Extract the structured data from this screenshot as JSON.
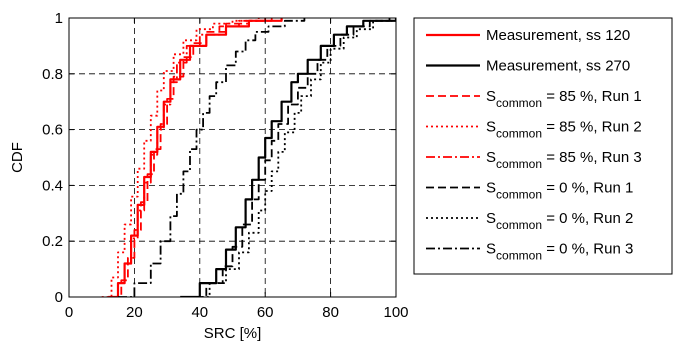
{
  "chart_data": {
    "type": "line",
    "title": "",
    "xlabel": "SRC [%]",
    "ylabel": "CDF",
    "xlim": [
      0,
      100
    ],
    "ylim": [
      0,
      1
    ],
    "xticks": [
      "0",
      "20",
      "40",
      "60",
      "80",
      "100"
    ],
    "yticks": [
      "0",
      "0.2",
      "0.4",
      "0.6",
      "0.8",
      "1"
    ],
    "grid": true,
    "legend_position": "outside-right",
    "series": [
      {
        "name": "Measurement, ss 120",
        "legend": {
          "main": "Measurement, ss 120",
          "sub": "",
          "rest": ""
        },
        "color": "#ff0000",
        "dash": "solid",
        "width": 2.2,
        "x": [
          12,
          15,
          17,
          19,
          21,
          23,
          25,
          27,
          29,
          31,
          34,
          37,
          42,
          48,
          55,
          65
        ],
        "y": [
          0,
          0.05,
          0.12,
          0.22,
          0.33,
          0.43,
          0.52,
          0.61,
          0.7,
          0.78,
          0.85,
          0.9,
          0.94,
          0.97,
          0.99,
          1.0
        ]
      },
      {
        "name": "Measurement, ss 270",
        "legend": {
          "main": "Measurement, ss 270",
          "sub": "",
          "rest": ""
        },
        "color": "#000000",
        "dash": "solid",
        "width": 2.2,
        "x": [
          34,
          40,
          45,
          48,
          51,
          54,
          56,
          58,
          60,
          62,
          65,
          68,
          70,
          73,
          77,
          81,
          85,
          90,
          100
        ],
        "y": [
          0,
          0.05,
          0.1,
          0.17,
          0.25,
          0.35,
          0.42,
          0.5,
          0.57,
          0.63,
          0.7,
          0.77,
          0.8,
          0.85,
          0.9,
          0.94,
          0.97,
          0.99,
          1.0
        ]
      },
      {
        "name": "S_common = 85 %, Run 1",
        "legend": {
          "main": "S",
          "sub": "common",
          "rest": " = 85 %, Run 1"
        },
        "color": "#ff0000",
        "dash": "8,4",
        "width": 1.8,
        "x": [
          13,
          16,
          18,
          20,
          22,
          24,
          26,
          28,
          30,
          32,
          35,
          38,
          42,
          48,
          55,
          62
        ],
        "y": [
          0,
          0.06,
          0.14,
          0.24,
          0.34,
          0.44,
          0.53,
          0.62,
          0.71,
          0.79,
          0.86,
          0.91,
          0.95,
          0.98,
          0.99,
          1.0
        ]
      },
      {
        "name": "S_common = 85 %, Run 2",
        "legend": {
          "main": "S",
          "sub": "common",
          "rest": " = 85 %, Run 2"
        },
        "color": "#ff0000",
        "dash": "2,3",
        "width": 1.8,
        "x": [
          10,
          13,
          15,
          17,
          19,
          21,
          23,
          25,
          27,
          29,
          32,
          35,
          39,
          44,
          50,
          58
        ],
        "y": [
          0,
          0.07,
          0.16,
          0.26,
          0.36,
          0.46,
          0.56,
          0.65,
          0.74,
          0.81,
          0.87,
          0.92,
          0.96,
          0.98,
          0.99,
          1.0
        ]
      },
      {
        "name": "S_common = 85 %, Run 3",
        "legend": {
          "main": "S",
          "sub": "common",
          "rest": " = 85 %, Run 3"
        },
        "color": "#ff0000",
        "dash": "9,3,2,3",
        "width": 1.8,
        "x": [
          13,
          15,
          17,
          19,
          21,
          23,
          25,
          27,
          29,
          31,
          33,
          36,
          40,
          46,
          52,
          60
        ],
        "y": [
          0,
          0.05,
          0.12,
          0.21,
          0.31,
          0.41,
          0.51,
          0.6,
          0.69,
          0.77,
          0.84,
          0.9,
          0.94,
          0.97,
          0.99,
          1.0
        ]
      },
      {
        "name": "S_common = 0 %, Run 1",
        "legend": {
          "main": "S",
          "sub": "common",
          "rest": " = 0 %, Run 1"
        },
        "color": "#000000",
        "dash": "8,4",
        "width": 1.8,
        "x": [
          35,
          42,
          47,
          50,
          53,
          56,
          58,
          60,
          62,
          64,
          67,
          70,
          73,
          76,
          79,
          83,
          87,
          92,
          98
        ],
        "y": [
          0,
          0.05,
          0.11,
          0.18,
          0.26,
          0.35,
          0.42,
          0.49,
          0.56,
          0.62,
          0.69,
          0.75,
          0.8,
          0.85,
          0.9,
          0.94,
          0.97,
          0.99,
          1.0
        ]
      },
      {
        "name": "S_common = 0 %, Run 2",
        "legend": {
          "main": "S",
          "sub": "common",
          "rest": " = 0 %, Run 2"
        },
        "color": "#000000",
        "dash": "2,3",
        "width": 1.8,
        "x": [
          36,
          43,
          48,
          52,
          55,
          58,
          60,
          62,
          64,
          66,
          69,
          71,
          74,
          77,
          80,
          84,
          88,
          93,
          99
        ],
        "y": [
          0,
          0.05,
          0.1,
          0.16,
          0.23,
          0.31,
          0.38,
          0.45,
          0.52,
          0.59,
          0.66,
          0.72,
          0.78,
          0.84,
          0.89,
          0.93,
          0.96,
          0.99,
          1.0
        ]
      },
      {
        "name": "S_common = 0 %, Run 3",
        "legend": {
          "main": "S",
          "sub": "common",
          "rest": " = 0 %, Run 3"
        },
        "color": "#000000",
        "dash": "9,3,2,3",
        "width": 1.8,
        "x": [
          15,
          20,
          25,
          28,
          31,
          33,
          35,
          37,
          39,
          41,
          43,
          45,
          48,
          51,
          54,
          57,
          61,
          66,
          72
        ],
        "y": [
          0,
          0.05,
          0.12,
          0.2,
          0.29,
          0.37,
          0.45,
          0.53,
          0.6,
          0.66,
          0.72,
          0.77,
          0.83,
          0.88,
          0.92,
          0.95,
          0.97,
          0.99,
          1.0
        ]
      }
    ]
  }
}
